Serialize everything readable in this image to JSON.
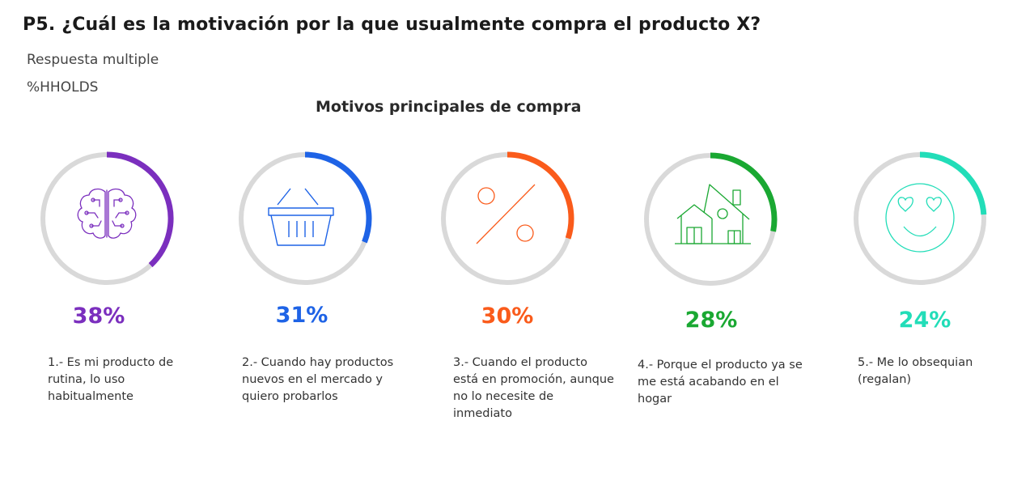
{
  "header": {
    "title": "P5. ¿Cuál es la motivación por la que usualmente compra el producto X?",
    "subtitle_1": "Respuesta multiple",
    "subtitle_2": "%HHOLDS"
  },
  "chart_data": {
    "type": "donut-rings",
    "title": "Motivos principales de compra",
    "unit": "%",
    "categories": [
      "1.- Es mi producto de rutina, lo uso habitualmente",
      "2.- Cuando hay productos nuevos en el mercado y quiero probarlos",
      "3.- Cuando el producto está en promoción, aunque no lo necesite de inmediato",
      "4.- Porque el producto ya se me está acabando en el hogar",
      "5.- Me lo obsequian (regalan)"
    ],
    "values": [
      38,
      31,
      30,
      28,
      24
    ],
    "labels": [
      "38%",
      "31%",
      "30%",
      "28%",
      "24%"
    ],
    "colors": [
      "#7B2FBE",
      "#1E63E6",
      "#FA5B1B",
      "#1AA832",
      "#22DDB8"
    ],
    "track_color": "#D9D9D9",
    "icons": [
      "brain-icon",
      "basket-icon",
      "percent-icon",
      "house-icon",
      "heart-eyes-smiley-icon"
    ]
  }
}
